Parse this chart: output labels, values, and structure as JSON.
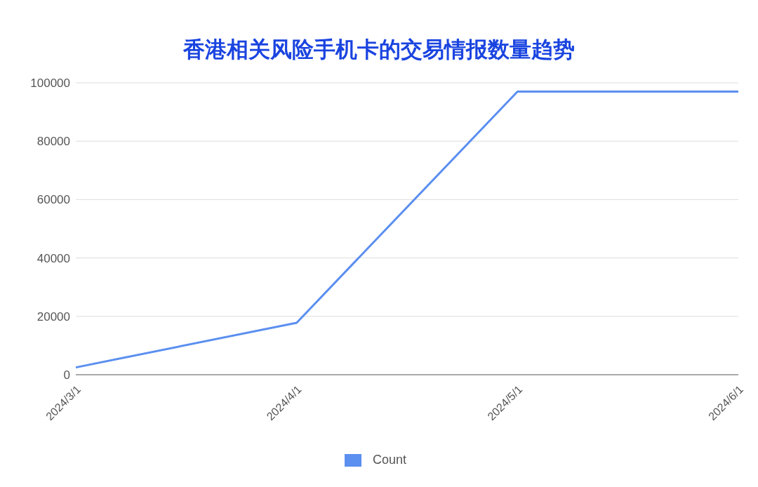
{
  "chart_data": {
    "type": "line",
    "title": "香港相关风险手机卡的交易情报数量趋势",
    "categories": [
      "2024/3/1",
      "2024/4/1",
      "2024/5/1",
      "2024/6/1"
    ],
    "series": [
      {
        "name": "Count",
        "color": "#5b8ff0",
        "values": [
          2500,
          17800,
          97000,
          97000
        ]
      }
    ],
    "ylim": [
      0,
      100000
    ],
    "yticks": [
      0,
      20000,
      40000,
      60000,
      80000,
      100000
    ],
    "grid": "y",
    "legend": "bottom",
    "marker": "none",
    "line_style": "solid"
  }
}
